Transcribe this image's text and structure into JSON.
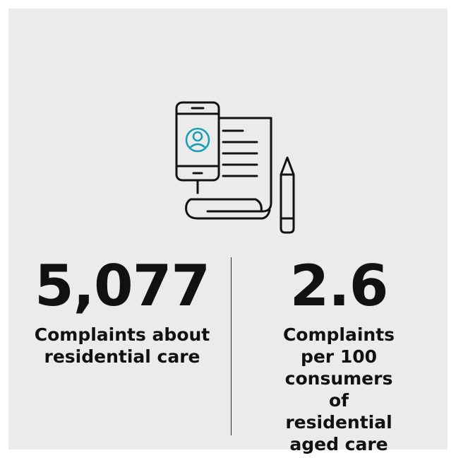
{
  "icon": {
    "name": "phone-document-pencil-icon",
    "accent_color": "#1a9fb3"
  },
  "stats": [
    {
      "value": "5,077",
      "caption": "Complaints about residential care"
    },
    {
      "value": "2.6",
      "caption": "Complaints per 100 consumers of residential aged care"
    }
  ]
}
